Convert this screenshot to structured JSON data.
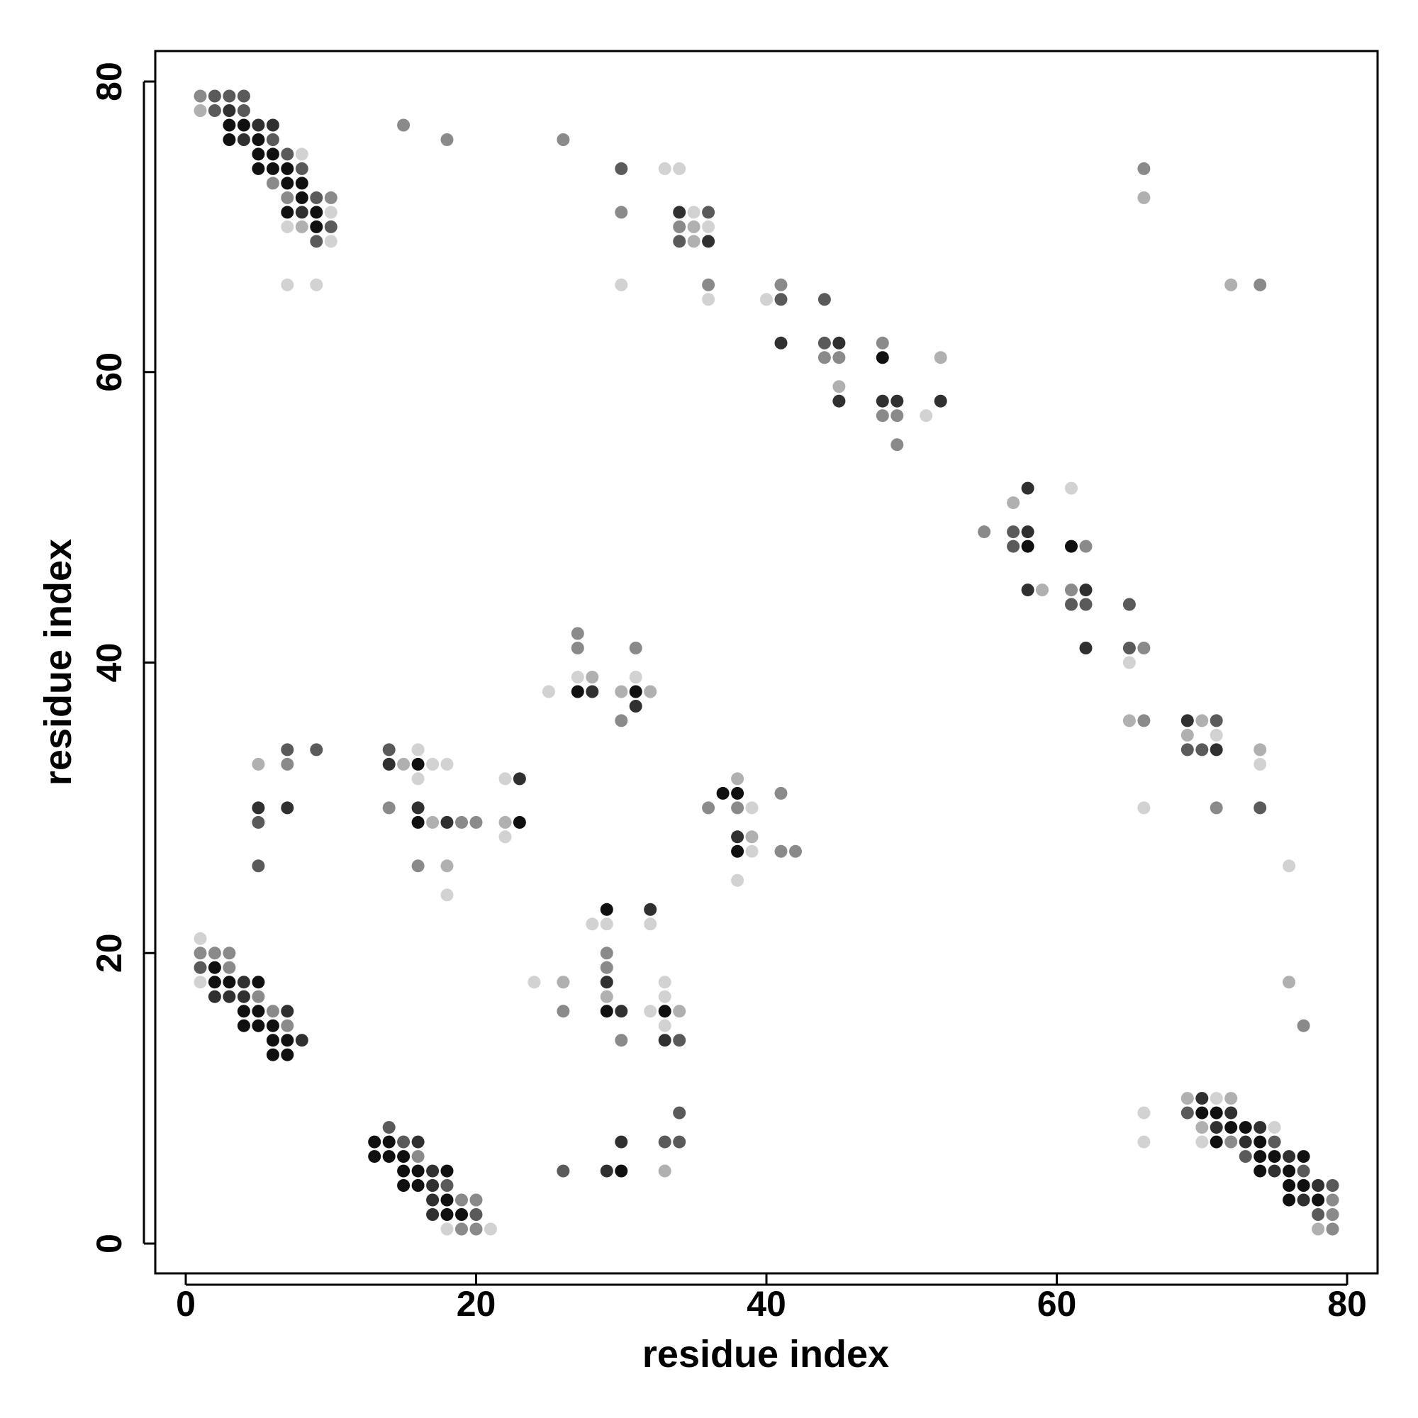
{
  "chart_data": {
    "type": "scatter",
    "title": "",
    "xlabel": "residue index",
    "ylabel": "residue index",
    "xlim": [
      -2,
      82
    ],
    "ylim": [
      -2,
      82
    ],
    "xticks": [
      0,
      20,
      40,
      60,
      80
    ],
    "yticks": [
      0,
      20,
      40,
      60,
      80
    ],
    "grid": false,
    "legend": "none",
    "colors": {
      "level_0": "#101010",
      "level_1": "#303030",
      "level_2": "#5a5a5a",
      "level_3": "#8a8a8a",
      "level_4": "#b0b0b0",
      "level_5": "#d2d2d2"
    },
    "points_note_format": "[x, y, shade_level 0=darkest..5=lightest]",
    "points": [
      [
        1,
        79,
        3
      ],
      [
        2,
        79,
        2
      ],
      [
        3,
        79,
        2
      ],
      [
        4,
        79,
        2
      ],
      [
        1,
        78,
        4
      ],
      [
        2,
        78,
        2
      ],
      [
        3,
        78,
        1
      ],
      [
        4,
        78,
        2
      ],
      [
        3,
        77,
        0
      ],
      [
        4,
        77,
        0
      ],
      [
        5,
        77,
        1
      ],
      [
        6,
        77,
        1
      ],
      [
        3,
        76,
        0
      ],
      [
        4,
        76,
        1
      ],
      [
        5,
        76,
        0
      ],
      [
        6,
        76,
        2
      ],
      [
        5,
        75,
        0
      ],
      [
        6,
        75,
        0
      ],
      [
        7,
        75,
        2
      ],
      [
        8,
        75,
        5
      ],
      [
        5,
        74,
        0
      ],
      [
        6,
        74,
        0
      ],
      [
        7,
        74,
        0
      ],
      [
        8,
        74,
        2
      ],
      [
        6,
        73,
        3
      ],
      [
        7,
        73,
        0
      ],
      [
        8,
        73,
        0
      ],
      [
        7,
        72,
        3
      ],
      [
        8,
        72,
        0
      ],
      [
        9,
        72,
        2
      ],
      [
        10,
        72,
        3
      ],
      [
        7,
        71,
        0
      ],
      [
        8,
        71,
        1
      ],
      [
        9,
        71,
        0
      ],
      [
        10,
        71,
        5
      ],
      [
        7,
        70,
        5
      ],
      [
        8,
        70,
        4
      ],
      [
        9,
        70,
        0
      ],
      [
        10,
        70,
        2
      ],
      [
        9,
        69,
        2
      ],
      [
        10,
        69,
        5
      ],
      [
        7,
        66,
        5
      ],
      [
        9,
        66,
        5
      ],
      [
        15,
        77,
        3
      ],
      [
        18,
        76,
        3
      ],
      [
        26,
        76,
        3
      ],
      [
        30,
        74,
        2
      ],
      [
        33,
        74,
        5
      ],
      [
        34,
        74,
        5
      ],
      [
        30,
        71,
        3
      ],
      [
        34,
        71,
        1
      ],
      [
        35,
        71,
        5
      ],
      [
        36,
        71,
        2
      ],
      [
        34,
        70,
        3
      ],
      [
        35,
        70,
        4
      ],
      [
        36,
        70,
        5
      ],
      [
        34,
        69,
        2
      ],
      [
        35,
        69,
        4
      ],
      [
        36,
        69,
        1
      ],
      [
        30,
        66,
        5
      ],
      [
        36,
        66,
        3
      ],
      [
        36,
        65,
        5
      ],
      [
        66,
        74,
        3
      ],
      [
        66,
        72,
        4
      ],
      [
        72,
        66,
        4
      ],
      [
        74,
        66,
        3
      ],
      [
        40,
        65,
        5
      ],
      [
        41,
        65,
        2
      ],
      [
        41,
        66,
        3
      ],
      [
        44,
        65,
        2
      ],
      [
        41,
        62,
        1
      ],
      [
        44,
        62,
        2
      ],
      [
        45,
        62,
        1
      ],
      [
        44,
        61,
        3
      ],
      [
        45,
        61,
        3
      ],
      [
        48,
        62,
        3
      ],
      [
        48,
        61,
        0
      ],
      [
        52,
        61,
        4
      ],
      [
        45,
        59,
        4
      ],
      [
        45,
        58,
        1
      ],
      [
        48,
        58,
        1
      ],
      [
        49,
        58,
        1
      ],
      [
        52,
        58,
        1
      ],
      [
        48,
        57,
        3
      ],
      [
        49,
        57,
        3
      ],
      [
        51,
        57,
        5
      ],
      [
        49,
        55,
        3
      ],
      [
        55,
        49,
        3
      ],
      [
        57,
        51,
        4
      ],
      [
        58,
        52,
        1
      ],
      [
        57,
        49,
        2
      ],
      [
        58,
        49,
        1
      ],
      [
        57,
        48,
        2
      ],
      [
        58,
        48,
        0
      ],
      [
        61,
        52,
        5
      ],
      [
        61,
        48,
        0
      ],
      [
        62,
        48,
        3
      ],
      [
        58,
        45,
        1
      ],
      [
        59,
        45,
        4
      ],
      [
        61,
        45,
        3
      ],
      [
        62,
        45,
        1
      ],
      [
        61,
        44,
        2
      ],
      [
        62,
        44,
        2
      ],
      [
        62,
        41,
        1
      ],
      [
        65,
        44,
        2
      ],
      [
        65,
        41,
        2
      ],
      [
        66,
        41,
        3
      ],
      [
        65,
        40,
        5
      ],
      [
        65,
        36,
        4
      ],
      [
        66,
        36,
        3
      ],
      [
        66,
        30,
        5
      ],
      [
        69,
        36,
        1
      ],
      [
        70,
        36,
        4
      ],
      [
        71,
        36,
        2
      ],
      [
        69,
        35,
        4
      ],
      [
        71,
        35,
        5
      ],
      [
        69,
        34,
        2
      ],
      [
        70,
        34,
        2
      ],
      [
        71,
        34,
        1
      ],
      [
        74,
        34,
        4
      ],
      [
        74,
        33,
        5
      ],
      [
        71,
        30,
        3
      ],
      [
        74,
        30,
        2
      ],
      [
        76,
        26,
        5
      ],
      [
        76,
        18,
        4
      ],
      [
        77,
        15,
        3
      ],
      [
        27,
        42,
        3
      ],
      [
        27,
        41,
        3
      ],
      [
        27,
        39,
        5
      ],
      [
        28,
        39,
        4
      ],
      [
        27,
        38,
        0
      ],
      [
        28,
        38,
        1
      ],
      [
        25,
        38,
        5
      ],
      [
        31,
        41,
        3
      ],
      [
        31,
        39,
        5
      ],
      [
        30,
        38,
        4
      ],
      [
        31,
        38,
        0
      ],
      [
        32,
        38,
        4
      ],
      [
        31,
        37,
        1
      ],
      [
        30,
        36,
        3
      ],
      [
        5,
        33,
        4
      ],
      [
        7,
        34,
        2
      ],
      [
        9,
        34,
        2
      ],
      [
        7,
        33,
        3
      ],
      [
        5,
        30,
        1
      ],
      [
        7,
        30,
        1
      ],
      [
        5,
        29,
        2
      ],
      [
        5,
        26,
        2
      ],
      [
        14,
        34,
        2
      ],
      [
        16,
        34,
        5
      ],
      [
        14,
        33,
        1
      ],
      [
        15,
        33,
        4
      ],
      [
        16,
        33,
        0
      ],
      [
        17,
        33,
        5
      ],
      [
        18,
        33,
        5
      ],
      [
        16,
        32,
        5
      ],
      [
        14,
        30,
        3
      ],
      [
        16,
        30,
        1
      ],
      [
        16,
        29,
        0
      ],
      [
        17,
        29,
        4
      ],
      [
        18,
        29,
        1
      ],
      [
        19,
        29,
        3
      ],
      [
        20,
        29,
        3
      ],
      [
        16,
        26,
        3
      ],
      [
        18,
        26,
        4
      ],
      [
        18,
        24,
        5
      ],
      [
        22,
        32,
        5
      ],
      [
        23,
        32,
        1
      ],
      [
        22,
        29,
        4
      ],
      [
        23,
        29,
        0
      ],
      [
        22,
        28,
        5
      ],
      [
        36,
        30,
        3
      ],
      [
        37,
        31,
        0
      ],
      [
        38,
        31,
        0
      ],
      [
        38,
        32,
        4
      ],
      [
        38,
        30,
        3
      ],
      [
        39,
        30,
        5
      ],
      [
        41,
        31,
        3
      ],
      [
        38,
        28,
        1
      ],
      [
        39,
        28,
        4
      ],
      [
        38,
        27,
        0
      ],
      [
        39,
        27,
        5
      ],
      [
        41,
        27,
        3
      ],
      [
        42,
        27,
        3
      ],
      [
        38,
        25,
        5
      ],
      [
        29,
        23,
        0
      ],
      [
        32,
        23,
        1
      ],
      [
        28,
        22,
        5
      ],
      [
        29,
        22,
        5
      ],
      [
        32,
        22,
        5
      ],
      [
        29,
        20,
        3
      ],
      [
        29,
        19,
        3
      ],
      [
        29,
        18,
        1
      ],
      [
        29,
        17,
        4
      ],
      [
        29,
        16,
        0
      ],
      [
        30,
        16,
        1
      ],
      [
        30,
        14,
        3
      ],
      [
        24,
        18,
        5
      ],
      [
        26,
        18,
        4
      ],
      [
        26,
        16,
        3
      ],
      [
        33,
        18,
        5
      ],
      [
        33,
        17,
        5
      ],
      [
        32,
        16,
        5
      ],
      [
        33,
        16,
        0
      ],
      [
        34,
        16,
        4
      ],
      [
        33,
        15,
        5
      ],
      [
        33,
        14,
        1
      ],
      [
        34,
        14,
        2
      ],
      [
        1,
        21,
        5
      ],
      [
        1,
        20,
        3
      ],
      [
        2,
        20,
        3
      ],
      [
        3,
        20,
        3
      ],
      [
        1,
        19,
        2
      ],
      [
        2,
        19,
        0
      ],
      [
        3,
        19,
        3
      ],
      [
        1,
        18,
        5
      ],
      [
        2,
        18,
        0
      ],
      [
        3,
        18,
        0
      ],
      [
        4,
        18,
        1
      ],
      [
        5,
        18,
        0
      ],
      [
        2,
        17,
        1
      ],
      [
        3,
        17,
        1
      ],
      [
        4,
        17,
        1
      ],
      [
        5,
        17,
        3
      ],
      [
        4,
        16,
        0
      ],
      [
        5,
        16,
        0
      ],
      [
        6,
        16,
        3
      ],
      [
        7,
        16,
        1
      ],
      [
        4,
        15,
        0
      ],
      [
        5,
        15,
        0
      ],
      [
        6,
        15,
        0
      ],
      [
        7,
        15,
        3
      ],
      [
        6,
        14,
        0
      ],
      [
        7,
        14,
        0
      ],
      [
        8,
        14,
        1
      ],
      [
        6,
        13,
        0
      ],
      [
        7,
        13,
        0
      ],
      [
        14,
        8,
        2
      ],
      [
        13,
        7,
        0
      ],
      [
        14,
        7,
        0
      ],
      [
        15,
        7,
        2
      ],
      [
        16,
        7,
        1
      ],
      [
        13,
        6,
        0
      ],
      [
        14,
        6,
        0
      ],
      [
        15,
        6,
        0
      ],
      [
        16,
        6,
        3
      ],
      [
        15,
        5,
        0
      ],
      [
        16,
        5,
        0
      ],
      [
        17,
        5,
        1
      ],
      [
        18,
        5,
        0
      ],
      [
        15,
        4,
        0
      ],
      [
        16,
        4,
        0
      ],
      [
        17,
        4,
        1
      ],
      [
        18,
        4,
        2
      ],
      [
        17,
        3,
        1
      ],
      [
        18,
        3,
        0
      ],
      [
        19,
        3,
        3
      ],
      [
        20,
        3,
        3
      ],
      [
        17,
        2,
        1
      ],
      [
        18,
        2,
        0
      ],
      [
        19,
        2,
        0
      ],
      [
        20,
        2,
        2
      ],
      [
        18,
        1,
        5
      ],
      [
        19,
        1,
        3
      ],
      [
        20,
        1,
        3
      ],
      [
        21,
        1,
        5
      ],
      [
        26,
        5,
        2
      ],
      [
        29,
        5,
        1
      ],
      [
        30,
        5,
        0
      ],
      [
        30,
        7,
        1
      ],
      [
        33,
        7,
        2
      ],
      [
        34,
        7,
        2
      ],
      [
        34,
        9,
        2
      ],
      [
        33,
        5,
        4
      ],
      [
        66,
        9,
        5
      ],
      [
        66,
        7,
        5
      ],
      [
        69,
        10,
        4
      ],
      [
        70,
        10,
        1
      ],
      [
        71,
        10,
        5
      ],
      [
        72,
        10,
        4
      ],
      [
        69,
        9,
        2
      ],
      [
        70,
        9,
        0
      ],
      [
        71,
        9,
        0
      ],
      [
        72,
        9,
        1
      ],
      [
        70,
        8,
        4
      ],
      [
        71,
        8,
        1
      ],
      [
        72,
        8,
        0
      ],
      [
        73,
        8,
        0
      ],
      [
        74,
        8,
        1
      ],
      [
        75,
        8,
        5
      ],
      [
        70,
        7,
        5
      ],
      [
        71,
        7,
        0
      ],
      [
        72,
        7,
        3
      ],
      [
        73,
        7,
        1
      ],
      [
        74,
        7,
        0
      ],
      [
        75,
        7,
        2
      ],
      [
        73,
        6,
        2
      ],
      [
        74,
        6,
        0
      ],
      [
        75,
        6,
        0
      ],
      [
        76,
        6,
        1
      ],
      [
        77,
        6,
        0
      ],
      [
        74,
        5,
        0
      ],
      [
        75,
        5,
        1
      ],
      [
        76,
        5,
        0
      ],
      [
        77,
        5,
        2
      ],
      [
        76,
        4,
        0
      ],
      [
        77,
        4,
        0
      ],
      [
        78,
        4,
        1
      ],
      [
        79,
        4,
        2
      ],
      [
        76,
        3,
        0
      ],
      [
        77,
        3,
        1
      ],
      [
        78,
        3,
        0
      ],
      [
        79,
        3,
        3
      ],
      [
        78,
        2,
        2
      ],
      [
        79,
        2,
        3
      ],
      [
        78,
        1,
        4
      ],
      [
        79,
        1,
        3
      ]
    ]
  }
}
